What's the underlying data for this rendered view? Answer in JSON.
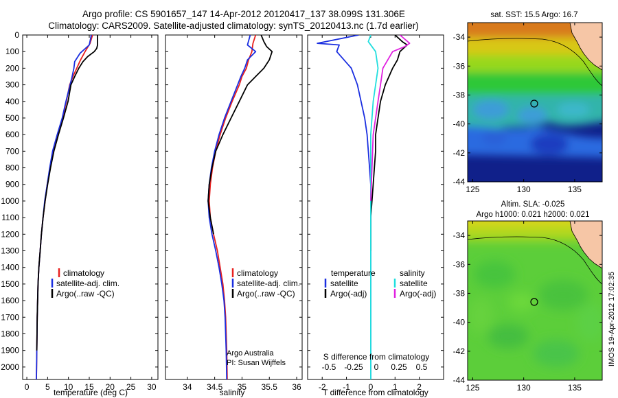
{
  "header": {
    "line1": "Argo profile: CS 5901657_147 14-Apr-2012 20120417_137 38.099S 131.306E",
    "line2": "Climatology: CARS2009. Satellite-adjusted climatology: synTS_20120413.nc (1.7d earlier)"
  },
  "side_stamp": "IMOS 19-Apr-2012 17:02:35",
  "colors": {
    "climatology": "#e8201e",
    "satellite": "#1a2ee0",
    "argo": "#000000",
    "sal_satellite": "#20dede",
    "sal_argo": "#e020e0",
    "land": "#f6c6a6"
  },
  "chart_data": [
    {
      "type": "line",
      "xlabel": "temperature (deg C)",
      "xticks": [
        0,
        5,
        10,
        15,
        20,
        25,
        30
      ],
      "xlim": [
        -1,
        31.5
      ],
      "ylim": [
        0,
        2075
      ],
      "yticks": [
        0,
        100,
        200,
        300,
        400,
        500,
        600,
        700,
        800,
        900,
        1000,
        1100,
        1200,
        1300,
        1400,
        1500,
        1600,
        1700,
        1800,
        1900,
        2000
      ],
      "legend": [
        "climatology",
        "satellite-adj. clim.",
        "Argo(..raw -QC)"
      ],
      "series": [
        {
          "name": "climatology",
          "x": [
            15.8,
            15.2,
            14.0,
            12.9,
            12.0,
            11.1,
            10.3,
            9.5,
            8.6,
            7.4,
            6.3,
            5.6,
            4.9,
            4.4,
            3.9,
            3.5,
            3.2,
            2.9,
            2.7,
            2.6,
            2.5,
            2.4,
            2.3
          ],
          "y": [
            0,
            50,
            100,
            150,
            200,
            250,
            300,
            400,
            500,
            600,
            700,
            800,
            900,
            1000,
            1100,
            1200,
            1300,
            1400,
            1500,
            1600,
            1700,
            1900,
            2075
          ]
        },
        {
          "name": "satellite-adj. clim.",
          "x": [
            15.5,
            15.0,
            12.8,
            11.5,
            11.3,
            10.8,
            10.4,
            9.4,
            8.5,
            7.3,
            6.2,
            5.5,
            4.9,
            4.3,
            3.9,
            3.5,
            3.2,
            2.9,
            2.7,
            2.6,
            2.5,
            2.4,
            2.3
          ],
          "y": [
            0,
            60,
            110,
            160,
            200,
            260,
            300,
            400,
            500,
            600,
            700,
            800,
            900,
            1000,
            1100,
            1200,
            1300,
            1400,
            1500,
            1600,
            1700,
            1900,
            2075
          ]
        },
        {
          "name": "Argo(..raw -QC)",
          "x": [
            17.0,
            17.0,
            16.8,
            16.2,
            14.6,
            13.5,
            12.5,
            11.5,
            10.6,
            9.9,
            8.8,
            7.6,
            6.5,
            5.7,
            5.0,
            4.4,
            3.9,
            3.5,
            3.2,
            2.9,
            2.7,
            2.5,
            2.4
          ],
          "y": [
            0,
            60,
            80,
            100,
            130,
            160,
            200,
            250,
            300,
            400,
            500,
            600,
            700,
            800,
            900,
            1000,
            1100,
            1200,
            1300,
            1400,
            1500,
            1700,
            1900
          ]
        }
      ]
    },
    {
      "type": "line",
      "xlabel": "salinity",
      "xticks": [
        34,
        34.5,
        35,
        35.5,
        36
      ],
      "xlim": [
        33.6,
        36.1
      ],
      "ylim": [
        0,
        2075
      ],
      "legend": [
        "climatology",
        "satellite-adj. clim.",
        "Argo(..raw -QC)"
      ],
      "annotation": [
        "Argo Australia",
        "PI: Susan Wijffels"
      ],
      "series": [
        {
          "name": "climatology",
          "x": [
            35.25,
            35.2,
            35.18,
            35.12,
            35.08,
            35.0,
            34.95,
            34.82,
            34.7,
            34.6,
            34.52,
            34.46,
            34.42,
            34.4,
            34.42,
            34.48,
            34.55,
            34.6,
            34.65,
            34.68,
            34.7,
            34.72,
            34.73
          ],
          "y": [
            0,
            50,
            100,
            150,
            200,
            250,
            300,
            400,
            500,
            600,
            700,
            800,
            900,
            1000,
            1100,
            1200,
            1300,
            1400,
            1500,
            1600,
            1700,
            1900,
            2075
          ]
        },
        {
          "name": "satellite-adj. clim.",
          "x": [
            35.15,
            35.1,
            35.25,
            35.1,
            35.05,
            34.98,
            34.92,
            34.8,
            34.68,
            34.58,
            34.5,
            34.44,
            34.4,
            34.38,
            34.4,
            34.45,
            34.52,
            34.58,
            34.63,
            34.67,
            34.69,
            34.71,
            34.72
          ],
          "y": [
            0,
            60,
            100,
            150,
            200,
            250,
            300,
            400,
            500,
            600,
            700,
            800,
            900,
            1000,
            1100,
            1200,
            1300,
            1400,
            1500,
            1600,
            1700,
            1900,
            2075
          ]
        },
        {
          "name": "Argo(..raw -QC)",
          "x": [
            35.35,
            35.4,
            35.45,
            35.55,
            35.5,
            35.4,
            35.25,
            35.1,
            34.95,
            34.8,
            34.65,
            34.52,
            34.45,
            34.4,
            34.38,
            34.42,
            34.48
          ],
          "y": [
            0,
            40,
            70,
            100,
            150,
            200,
            250,
            300,
            400,
            500,
            600,
            700,
            800,
            900,
            1000,
            1100,
            1200
          ]
        }
      ]
    },
    {
      "type": "line",
      "xlabel": "T difference from climatology",
      "xlabel_top": "S difference from climatology",
      "xticks": [
        -2,
        -1,
        0,
        1,
        2
      ],
      "xticks_top": [
        "-0.5",
        "-0.25",
        "0",
        "0.25",
        "0.5"
      ],
      "xlim": [
        -2.6,
        3.0
      ],
      "ylim": [
        0,
        2075
      ],
      "legend_temperature": [
        "temperature",
        "satellite",
        "Argo(-adj)"
      ],
      "legend_salinity": [
        "salinity",
        "satellite",
        "Argo(-adj)"
      ],
      "series": [
        {
          "name": "satellite",
          "x": [
            -0.5,
            -2.2,
            -1.3,
            -1.4,
            -1.1,
            -0.8,
            -0.55,
            -0.4,
            -0.25,
            -0.15,
            -0.1,
            -0.05,
            0,
            0,
            0,
            0
          ],
          "y": [
            0,
            50,
            60,
            100,
            150,
            200,
            300,
            400,
            500,
            600,
            700,
            800,
            900,
            1000,
            1500,
            2075
          ]
        },
        {
          "name": "Argo(-adj)",
          "x": [
            1.0,
            1.3,
            1.5,
            1.2,
            1.1,
            0.9,
            0.6,
            0.4,
            0.3,
            0.2,
            0.2,
            0.15,
            0.1,
            0.05,
            0,
            0
          ],
          "y": [
            0,
            40,
            60,
            100,
            150,
            200,
            300,
            400,
            500,
            600,
            700,
            800,
            900,
            1000,
            1100,
            1300
          ]
        },
        {
          "name": "satellite",
          "x": [
            0,
            -0.1,
            0.2,
            0.3,
            0.2,
            0.1,
            0.05,
            0,
            0,
            0,
            0
          ],
          "y": [
            0,
            40,
            100,
            200,
            300,
            400,
            500,
            600,
            800,
            1000,
            2075
          ]
        },
        {
          "name": "Argo(-adj)",
          "x": [
            1.2,
            1.6,
            1.4,
            0.9,
            0.7,
            0.5,
            0.4,
            0.3,
            0.2,
            0.1,
            0.05,
            0
          ],
          "y": [
            0,
            50,
            70,
            100,
            150,
            200,
            300,
            400,
            500,
            600,
            800,
            1000
          ]
        }
      ]
    }
  ],
  "maps": [
    {
      "title": "sat. SST: 15.5 Argo: 16.7",
      "xticks": [
        "125",
        "130",
        "135"
      ],
      "yticks": [
        "-34",
        "-36",
        "-38",
        "-40",
        "-42",
        "-44"
      ]
    },
    {
      "title1": "Altim. SLA: -0.025",
      "title2": "Argo h1000: 0.021 h2000: 0.021",
      "xticks": [
        "125",
        "130",
        "135"
      ],
      "yticks": [
        "-34",
        "-36",
        "-38",
        "-40",
        "-42",
        "-44"
      ]
    }
  ]
}
